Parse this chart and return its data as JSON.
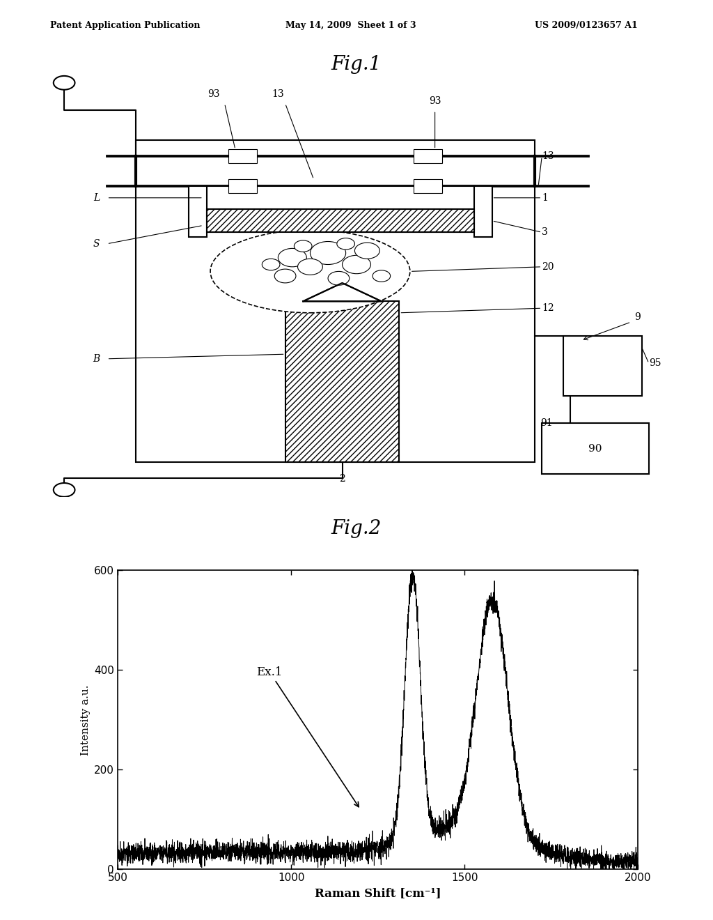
{
  "fig_title1": "Fig.1",
  "fig_title2": "Fig.2",
  "header_left": "Patent Application Publication",
  "header_center": "May 14, 2009  Sheet 1 of 3",
  "header_right": "US 2009/0123657 A1",
  "raman_xlabel": "Raman Shift [cm⁻¹]",
  "raman_ylabel": "Intensity a.u.",
  "raman_annotation": "Ex.1",
  "raman_xlim": [
    500,
    2000
  ],
  "raman_ylim": [
    0,
    600
  ],
  "raman_xticks": [
    500,
    1000,
    1500,
    2000
  ],
  "raman_yticks": [
    0,
    200,
    400,
    600
  ],
  "bg_color": "#ffffff",
  "line_color": "#000000",
  "label_fontsize": 10,
  "title_fontsize": 20
}
